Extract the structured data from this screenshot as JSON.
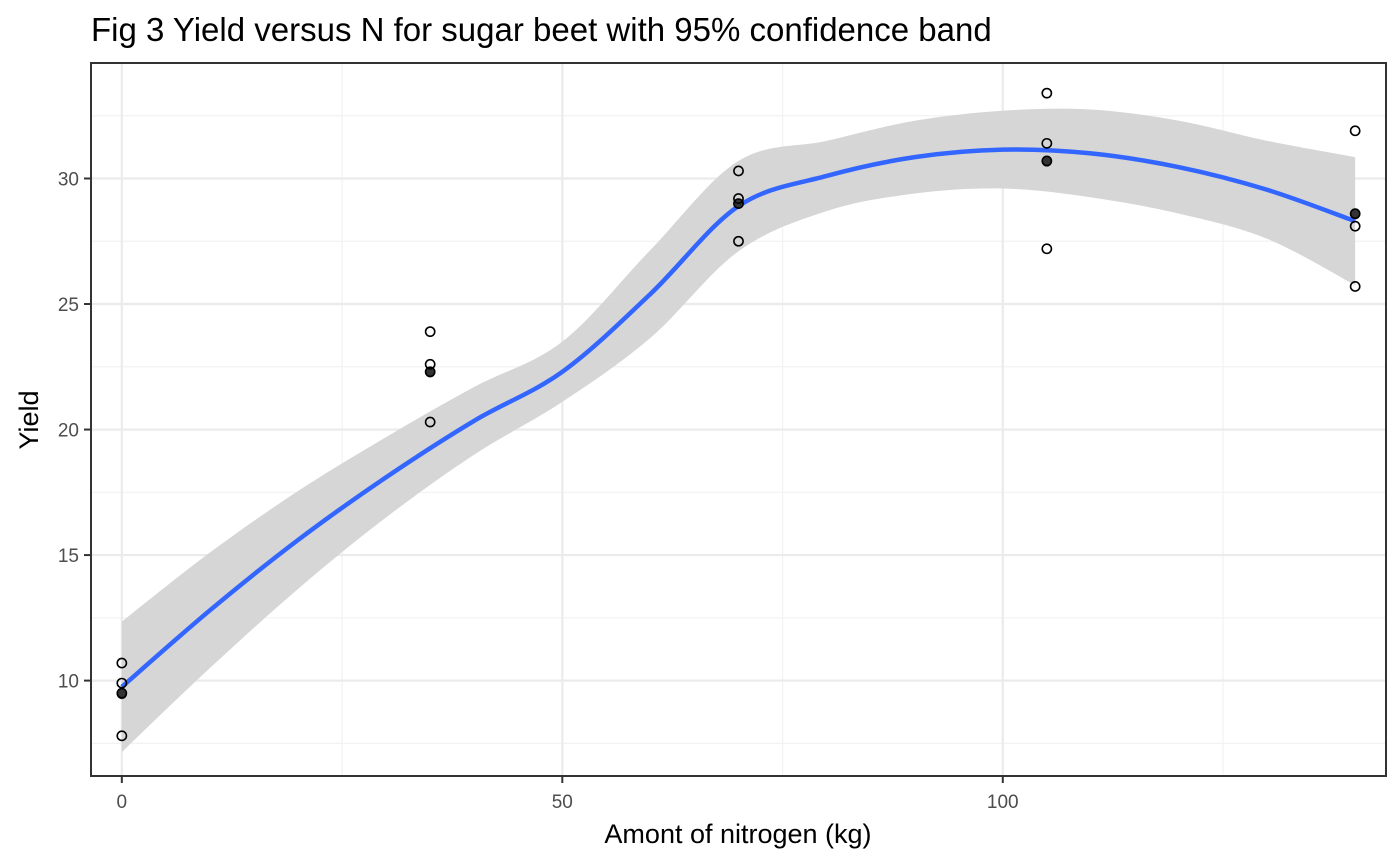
{
  "chart_data": {
    "type": "scatter",
    "title": "Fig 3 Yield versus N for sugar beet with 95% confidence band",
    "xlabel": "Amont of nitrogen (kg)",
    "ylabel": "Yield",
    "xlim": [
      -3.5,
      143.5
    ],
    "ylim": [
      6.2,
      34.6
    ],
    "x_ticks": [
      0,
      50,
      100
    ],
    "x_tick_labels": [
      "0",
      "50",
      "100"
    ],
    "x_minor_ticks": [
      25,
      75,
      125
    ],
    "y_ticks": [
      10,
      15,
      20,
      25,
      30
    ],
    "y_tick_labels": [
      "10",
      "15",
      "20",
      "25",
      "30"
    ],
    "y_minor_ticks": [
      7.5,
      12.5,
      17.5,
      22.5,
      27.5,
      32.5
    ],
    "grid": true,
    "theme": "black-and-white",
    "observations": [
      {
        "x": 0,
        "y": 10.7
      },
      {
        "x": 0,
        "y": 9.9
      },
      {
        "x": 0,
        "y": 9.5
      },
      {
        "x": 0,
        "y": 7.8
      },
      {
        "x": 35,
        "y": 23.9
      },
      {
        "x": 35,
        "y": 22.6
      },
      {
        "x": 35,
        "y": 22.3
      },
      {
        "x": 35,
        "y": 20.3
      },
      {
        "x": 70,
        "y": 30.3
      },
      {
        "x": 70,
        "y": 29.2
      },
      {
        "x": 70,
        "y": 29.0
      },
      {
        "x": 70,
        "y": 27.5
      },
      {
        "x": 105,
        "y": 33.4
      },
      {
        "x": 105,
        "y": 31.4
      },
      {
        "x": 105,
        "y": 30.7
      },
      {
        "x": 105,
        "y": 27.2
      },
      {
        "x": 140,
        "y": 31.9
      },
      {
        "x": 140,
        "y": 28.6
      },
      {
        "x": 140,
        "y": 28.1
      },
      {
        "x": 140,
        "y": 25.7
      }
    ],
    "group_means": [
      {
        "x": 0,
        "y": 9.47
      },
      {
        "x": 35,
        "y": 22.28
      },
      {
        "x": 70,
        "y": 29.0
      },
      {
        "x": 105,
        "y": 30.68
      },
      {
        "x": 140,
        "y": 28.58
      }
    ],
    "fit": {
      "method": "quadratic",
      "color": "#3366ff",
      "x": [
        0,
        10,
        20,
        30,
        40,
        50,
        60,
        70,
        80,
        90,
        100,
        110,
        120,
        130,
        140
      ],
      "y": [
        9.75,
        12.8,
        15.6,
        18.1,
        20.35,
        22.3,
        25.4,
        28.9,
        30.1,
        30.85,
        31.15,
        31.0,
        30.45,
        29.55,
        28.3
      ],
      "lower": [
        7.15,
        10.5,
        13.65,
        16.5,
        19.0,
        21.1,
        23.65,
        27.1,
        28.7,
        29.4,
        29.6,
        29.25,
        28.6,
        27.6,
        25.75
      ],
      "upper": [
        12.35,
        15.1,
        17.55,
        19.7,
        21.7,
        23.5,
        27.15,
        30.7,
        31.5,
        32.3,
        32.7,
        32.75,
        32.3,
        31.5,
        30.85
      ],
      "band_color": "#d4d4d4"
    },
    "colors": {
      "panel_border": "#333333",
      "grid_major": "#ebebeb",
      "grid_minor": "#f2f2f2",
      "point": "#000000",
      "mean_point": "#333333"
    }
  }
}
